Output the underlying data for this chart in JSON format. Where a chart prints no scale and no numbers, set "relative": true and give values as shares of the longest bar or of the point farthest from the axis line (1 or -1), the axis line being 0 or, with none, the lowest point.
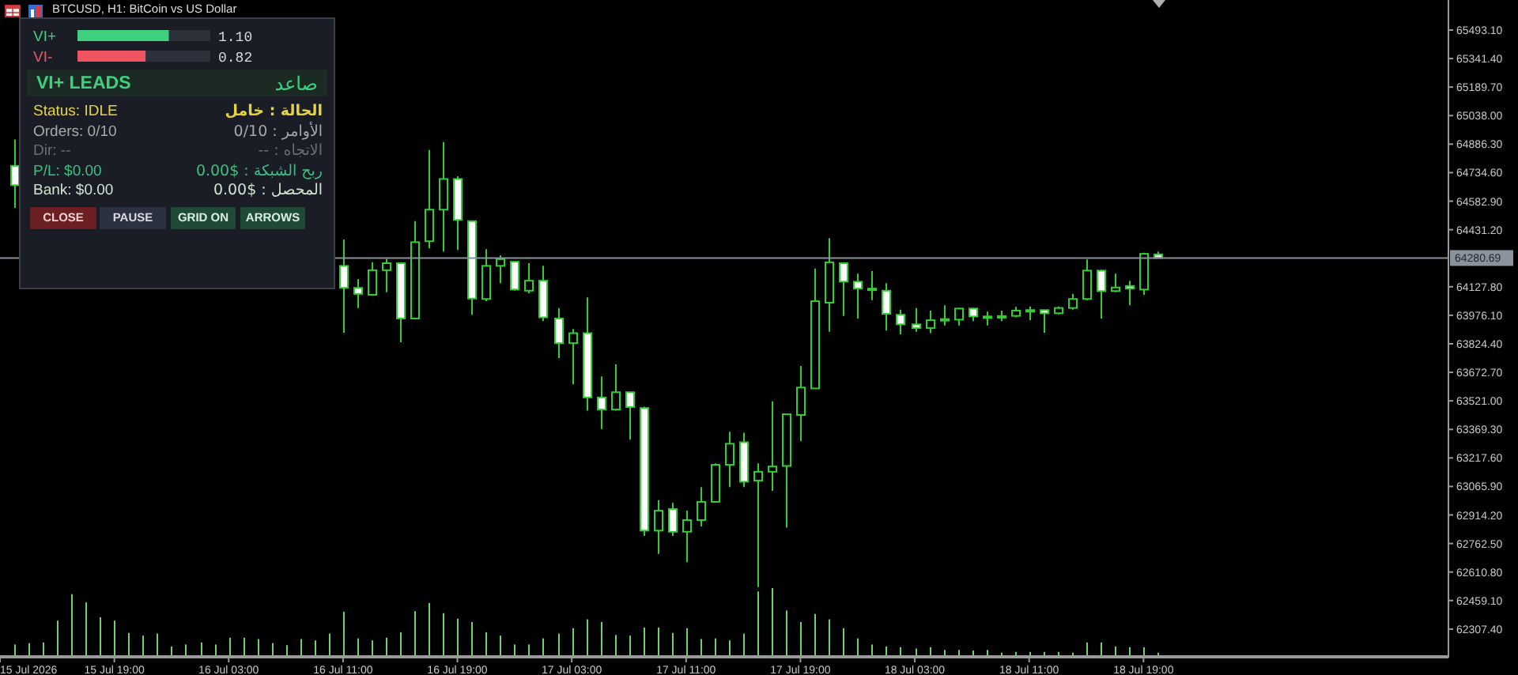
{
  "chart_data": [
    {
      "type": "candlestick",
      "title": "BTCUSD, H1: BitCoin vs US Dollar",
      "x": [
        "2026-07-15T12:00",
        "2026-07-16T11:00",
        "2026-07-16T12:00",
        "2026-07-16T13:00",
        "2026-07-16T14:00",
        "2026-07-16T15:00",
        "2026-07-16T16:00",
        "2026-07-16T17:00",
        "2026-07-16T18:00",
        "2026-07-16T19:00",
        "2026-07-16T20:00",
        "2026-07-16T21:00",
        "2026-07-16T22:00",
        "2026-07-16T23:00",
        "2026-07-17T00:00",
        "2026-07-17T01:00",
        "2026-07-17T02:00",
        "2026-07-17T03:00",
        "2026-07-17T04:00",
        "2026-07-17T05:00",
        "2026-07-17T06:00",
        "2026-07-17T07:00",
        "2026-07-17T08:00",
        "2026-07-17T09:00",
        "2026-07-17T10:00",
        "2026-07-17T11:00",
        "2026-07-17T12:00",
        "2026-07-17T13:00",
        "2026-07-17T14:00",
        "2026-07-17T15:00",
        "2026-07-17T16:00",
        "2026-07-17T17:00",
        "2026-07-17T18:00",
        "2026-07-17T19:00",
        "2026-07-17T20:00",
        "2026-07-17T21:00",
        "2026-07-17T22:00",
        "2026-07-17T23:00",
        "2026-07-18T00:00",
        "2026-07-18T01:00",
        "2026-07-18T02:00",
        "2026-07-18T03:00",
        "2026-07-18T04:00",
        "2026-07-18T05:00",
        "2026-07-18T06:00",
        "2026-07-18T07:00",
        "2026-07-18T08:00",
        "2026-07-18T09:00",
        "2026-07-18T10:00",
        "2026-07-18T11:00",
        "2026-07-18T12:00",
        "2026-07-18T13:00",
        "2026-07-18T14:00",
        "2026-07-18T15:00",
        "2026-07-18T16:00",
        "2026-07-18T17:00",
        "2026-07-18T18:00",
        "2026-07-18T19:00",
        "2026-07-18T20:00"
      ],
      "ohlc": [
        [
          64771,
          64911,
          64547,
          64668
        ],
        [
          64239,
          64379,
          63883,
          64122
        ],
        [
          64122,
          64169,
          64015,
          64090
        ],
        [
          64085,
          64258,
          64080,
          64216
        ],
        [
          64216,
          64275,
          64099,
          64253
        ],
        [
          64253,
          64258,
          63833,
          63959
        ],
        [
          63959,
          64477,
          63955,
          64365
        ],
        [
          64370,
          64855,
          64332,
          64538
        ],
        [
          64538,
          64897,
          64315,
          64701
        ],
        [
          64701,
          64715,
          64323,
          64483
        ],
        [
          64477,
          64480,
          63979,
          64065
        ],
        [
          64063,
          64328,
          64051,
          64239
        ],
        [
          64239,
          64295,
          64147,
          64275
        ],
        [
          64261,
          64265,
          64107,
          64113
        ],
        [
          64107,
          64253,
          64093,
          64160
        ],
        [
          64160,
          64239,
          63945,
          63965
        ],
        [
          63959,
          64015,
          63749,
          63828
        ],
        [
          63828,
          63903,
          63609,
          63881
        ],
        [
          63881,
          64071,
          63469,
          63539
        ],
        [
          63539,
          63651,
          63371,
          63475
        ],
        [
          63475,
          63715,
          63469,
          63567
        ],
        [
          63567,
          63570,
          63315,
          63488
        ],
        [
          63483,
          63490,
          62803,
          62831
        ],
        [
          62831,
          62993,
          62707,
          62937
        ],
        [
          62946,
          62979,
          62803,
          62825
        ],
        [
          62825,
          62937,
          62663,
          62887
        ],
        [
          62887,
          63063,
          62853,
          62984
        ],
        [
          62984,
          63189,
          62980,
          63181
        ],
        [
          63181,
          63357,
          63063,
          63293
        ],
        [
          63301,
          63351,
          63063,
          63091
        ],
        [
          63097,
          63189,
          62531,
          63144
        ],
        [
          63144,
          63519,
          63043,
          63172
        ],
        [
          63175,
          63450,
          62847,
          63450
        ],
        [
          63446,
          63707,
          63307,
          63592
        ],
        [
          63587,
          64225,
          63585,
          64051
        ],
        [
          64043,
          64387,
          63889,
          64258
        ],
        [
          64253,
          64258,
          63973,
          64155
        ],
        [
          64155,
          64197,
          63959,
          64118
        ],
        [
          64118,
          64211,
          64057,
          64113
        ],
        [
          64107,
          64147,
          63895,
          63984
        ],
        [
          63979,
          64006,
          63875,
          63928
        ],
        [
          63928,
          64015,
          63889,
          63908
        ],
        [
          63908,
          64001,
          63881,
          63950
        ],
        [
          63950,
          64029,
          63922,
          63956
        ],
        [
          63953,
          64015,
          63922,
          64012
        ],
        [
          64012,
          64015,
          63945,
          63970
        ],
        [
          63970,
          63996,
          63922,
          63965
        ],
        [
          63968,
          64001,
          63945,
          63972
        ],
        [
          63973,
          64021,
          63965,
          64001
        ],
        [
          64001,
          64023,
          63950,
          64004
        ],
        [
          64004,
          64006,
          63883,
          63987
        ],
        [
          63987,
          64023,
          63981,
          64015
        ],
        [
          64015,
          64090,
          64006,
          64063
        ],
        [
          64063,
          64273,
          64057,
          64214
        ],
        [
          64214,
          64218,
          63959,
          64105
        ],
        [
          64105,
          64197,
          64099,
          64124
        ],
        [
          64132,
          64160,
          64029,
          64118
        ],
        [
          64113,
          64309,
          64085,
          64303
        ],
        [
          64300,
          64315,
          64281,
          64281
        ]
      ],
      "color": "#33cc33",
      "xlim": [
        "2026-07-15T11:00",
        "2026-07-19T16:20"
      ],
      "xticks": [
        {
          "value": "2026-07-15T11:00",
          "label": "15 Jul 2026"
        },
        {
          "value": "2026-07-15T19:00",
          "label": "15 Jul 19:00"
        },
        {
          "value": "2026-07-16T03:00",
          "label": "16 Jul 03:00"
        },
        {
          "value": "2026-07-16T11:00",
          "label": "16 Jul 11:00"
        },
        {
          "value": "2026-07-16T19:00",
          "label": "16 Jul 19:00"
        },
        {
          "value": "2026-07-17T03:00",
          "label": "17 Jul 03:00"
        },
        {
          "value": "2026-07-17T11:00",
          "label": "17 Jul 11:00"
        },
        {
          "value": "2026-07-17T19:00",
          "label": "17 Jul 19:00"
        },
        {
          "value": "2026-07-18T03:00",
          "label": "18 Jul 03:00"
        },
        {
          "value": "2026-07-18T11:00",
          "label": "18 Jul 11:00"
        },
        {
          "value": "2026-07-18T19:00",
          "label": "18 Jul 19:00"
        }
      ],
      "ylim": [
        62155.7,
        65652.8
      ],
      "yticks": [
        {
          "value": 65493.1,
          "label": "65493.10"
        },
        {
          "value": 65341.4,
          "label": "65341.40"
        },
        {
          "value": 65189.7,
          "label": "65189.70"
        },
        {
          "value": 65038,
          "label": "65038.00"
        },
        {
          "value": 64886.3,
          "label": "64886.30"
        },
        {
          "value": 64734.6,
          "label": "64734.60"
        },
        {
          "value": 64582.9,
          "label": "64582.90"
        },
        {
          "value": 64431.2,
          "label": "64431.20"
        },
        {
          "value": 64127.8,
          "label": "64127.80"
        },
        {
          "value": 63976.1,
          "label": "63976.10"
        },
        {
          "value": 63824.4,
          "label": "63824.40"
        },
        {
          "value": 63672.7,
          "label": "63672.70"
        },
        {
          "value": 63521,
          "label": "63521.00"
        },
        {
          "value": 63369.3,
          "label": "63369.30"
        },
        {
          "value": 63217.6,
          "label": "63217.60"
        },
        {
          "value": 63065.9,
          "label": "63065.90"
        },
        {
          "value": 62914.2,
          "label": "62914.20"
        },
        {
          "value": 62762.5,
          "label": "62762.50"
        },
        {
          "value": 62610.8,
          "label": "62610.80"
        },
        {
          "value": 62459.1,
          "label": "62459.10"
        },
        {
          "value": 62307.4,
          "label": "62307.40"
        }
      ],
      "ref_lines": [
        {
          "axis": "y",
          "value": 64280.69,
          "label": "64280.69",
          "color": "#8a929c"
        }
      ]
    },
    {
      "type": "bar",
      "relative": true,
      "tick_labels": false,
      "color": "#6fd26f",
      "x": [
        "2026-07-15T12:00",
        "2026-07-15T13:00",
        "2026-07-15T14:00",
        "2026-07-15T15:00",
        "2026-07-15T16:00",
        "2026-07-15T17:00",
        "2026-07-15T18:00",
        "2026-07-15T19:00",
        "2026-07-15T20:00",
        "2026-07-15T21:00",
        "2026-07-15T22:00",
        "2026-07-15T23:00",
        "2026-07-16T00:00",
        "2026-07-16T01:00",
        "2026-07-16T02:00",
        "2026-07-16T03:00",
        "2026-07-16T04:00",
        "2026-07-16T05:00",
        "2026-07-16T06:00",
        "2026-07-16T07:00",
        "2026-07-16T08:00",
        "2026-07-16T09:00",
        "2026-07-16T10:00",
        "2026-07-16T11:00",
        "2026-07-16T12:00",
        "2026-07-16T13:00",
        "2026-07-16T14:00",
        "2026-07-16T15:00",
        "2026-07-16T16:00",
        "2026-07-16T17:00",
        "2026-07-16T18:00",
        "2026-07-16T19:00",
        "2026-07-16T20:00",
        "2026-07-16T21:00",
        "2026-07-16T22:00",
        "2026-07-16T23:00",
        "2026-07-17T00:00",
        "2026-07-17T01:00",
        "2026-07-17T02:00",
        "2026-07-17T03:00",
        "2026-07-17T04:00",
        "2026-07-17T05:00",
        "2026-07-17T06:00",
        "2026-07-17T07:00",
        "2026-07-17T08:00",
        "2026-07-17T09:00",
        "2026-07-17T10:00",
        "2026-07-17T11:00",
        "2026-07-17T12:00",
        "2026-07-17T13:00",
        "2026-07-17T14:00",
        "2026-07-17T15:00",
        "2026-07-17T16:00",
        "2026-07-17T17:00",
        "2026-07-17T18:00",
        "2026-07-17T19:00",
        "2026-07-17T20:00",
        "2026-07-17T21:00",
        "2026-07-17T22:00",
        "2026-07-17T23:00",
        "2026-07-18T00:00",
        "2026-07-18T01:00",
        "2026-07-18T02:00",
        "2026-07-18T03:00",
        "2026-07-18T04:00",
        "2026-07-18T05:00",
        "2026-07-18T06:00",
        "2026-07-18T07:00",
        "2026-07-18T08:00",
        "2026-07-18T09:00",
        "2026-07-18T10:00",
        "2026-07-18T11:00",
        "2026-07-18T12:00",
        "2026-07-18T13:00",
        "2026-07-18T14:00",
        "2026-07-18T15:00",
        "2026-07-18T16:00",
        "2026-07-18T17:00",
        "2026-07-18T18:00",
        "2026-07-18T19:00",
        "2026-07-18T20:00"
      ],
      "values": [
        0.17,
        0.19,
        0.2,
        0.52,
        0.91,
        0.79,
        0.57,
        0.52,
        0.34,
        0.3,
        0.33,
        0.14,
        0.17,
        0.2,
        0.17,
        0.27,
        0.27,
        0.25,
        0.19,
        0.16,
        0.25,
        0.23,
        0.33,
        0.65,
        0.26,
        0.23,
        0.27,
        0.35,
        0.66,
        0.78,
        0.63,
        0.55,
        0.5,
        0.35,
        0.3,
        0.17,
        0.17,
        0.26,
        0.33,
        0.41,
        0.54,
        0.5,
        0.31,
        0.3,
        0.42,
        0.42,
        0.34,
        0.41,
        0.25,
        0.26,
        0.23,
        0.33,
        0.95,
        1,
        0.67,
        0.5,
        0.62,
        0.54,
        0.41,
        0.26,
        0.17,
        0.14,
        0.13,
        0.11,
        0.13,
        0.09,
        0.09,
        0.08,
        0.09,
        0.05,
        0.06,
        0.06,
        0.06,
        0.06,
        0.05,
        0.2,
        0.2,
        0.14,
        0.13,
        0.13,
        0.05
      ],
      "xlim": [
        "2026-07-15T11:00",
        "2026-07-19T16:20"
      ]
    },
    {
      "type": "bar",
      "orientation": "horizontal",
      "tick_labels": "y",
      "categories": [
        "VI+",
        "VI-"
      ],
      "values": [
        1.1,
        0.82
      ],
      "colors": [
        "#3ecf7f",
        "#ef5560"
      ],
      "value_labels": [
        "1.10",
        "0.82"
      ],
      "xlim": [
        0,
        1.6
      ],
      "annotations": [
        "VI+ LEADS",
        "صاعد",
        "Status: IDLE",
        "الحالة : خامل",
        "Orders: 0/10",
        "الأوامر : 0/10",
        "Dir: --",
        "الاتجاه : --",
        "P/L: $0.00",
        "ربح الشبكة : $0.00",
        "Bank: $0.00",
        "المحصل : $0.00",
        "CLOSE",
        "PAUSE",
        "GRID ON",
        "ARROWS"
      ]
    }
  ]
}
